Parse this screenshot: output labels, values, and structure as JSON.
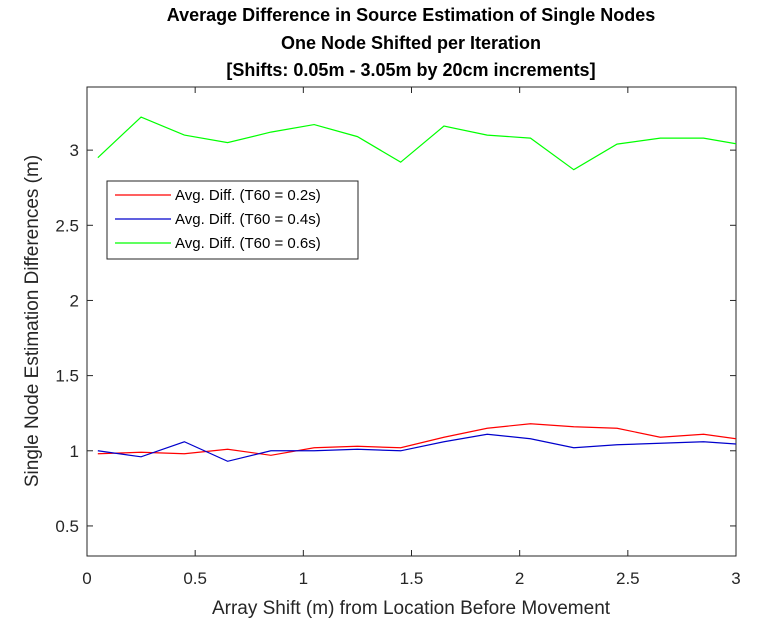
{
  "chart_data": {
    "type": "line",
    "title": [
      "Average Difference in Source Estimation of Single Nodes",
      "One Node Shifted per Iteration",
      "[Shifts: 0.05m - 3.05m by 20cm increments]"
    ],
    "xlabel": "Array Shift (m) from Location Before Movement",
    "ylabel": "Single Node Estimation Differences (m)",
    "xlim": [
      0,
      3
    ],
    "ylim": [
      0.3,
      3.42
    ],
    "xticks": [
      0,
      0.5,
      1,
      1.5,
      2,
      2.5,
      3
    ],
    "xtick_labels": [
      "0",
      "0.5",
      "1",
      "1.5",
      "2",
      "2.5",
      "3"
    ],
    "yticks": [
      0.5,
      1,
      1.5,
      2,
      2.5,
      3
    ],
    "ytick_labels": [
      "0.5",
      "1",
      "1.5",
      "2",
      "2.5",
      "3"
    ],
    "grid": false,
    "legend_position": "upper-left",
    "x": [
      0.05,
      0.25,
      0.45,
      0.65,
      0.85,
      1.05,
      1.25,
      1.45,
      1.65,
      1.85,
      2.05,
      2.25,
      2.45,
      2.65,
      2.85,
      3.05
    ],
    "series": [
      {
        "name": "Avg. Diff. (T60 = 0.2s)",
        "color": "#ff0000",
        "values": [
          0.98,
          0.99,
          0.98,
          1.01,
          0.97,
          1.02,
          1.03,
          1.02,
          1.09,
          1.15,
          1.18,
          1.16,
          1.15,
          1.09,
          1.11,
          1.07
        ]
      },
      {
        "name": "Avg. Diff. (T60 = 0.4s)",
        "color": "#0000cc",
        "values": [
          1.0,
          0.96,
          1.06,
          0.93,
          1.0,
          1.0,
          1.01,
          1.0,
          1.06,
          1.11,
          1.08,
          1.02,
          1.04,
          1.05,
          1.06,
          1.04
        ]
      },
      {
        "name": "Avg. Diff. (T60 = 0.6s)",
        "color": "#00ff00",
        "values": [
          2.95,
          3.22,
          3.1,
          3.05,
          3.12,
          3.17,
          3.09,
          2.92,
          3.16,
          3.1,
          3.08,
          2.87,
          3.04,
          3.08,
          3.08,
          3.03
        ]
      }
    ]
  }
}
